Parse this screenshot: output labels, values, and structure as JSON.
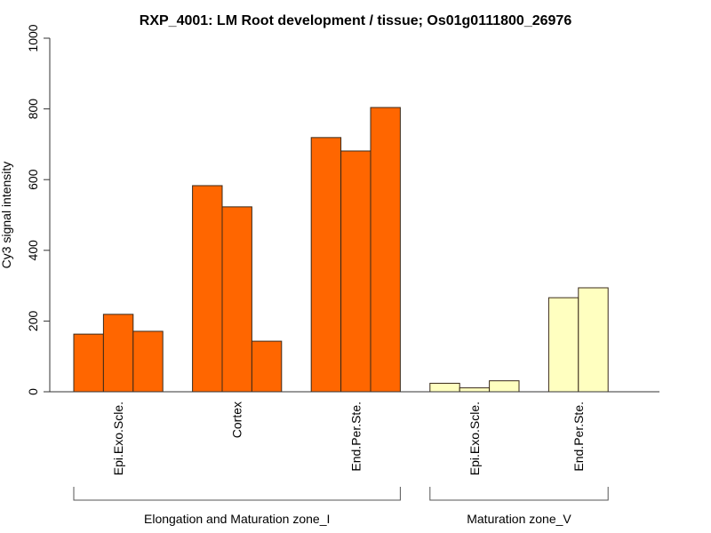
{
  "chart_data": {
    "type": "bar",
    "title": "RXP_4001: LM Root development / tissue; Os01g0111800_26976",
    "xlabel": "",
    "ylabel": "Cy3 signal intensity",
    "ylim": [
      0,
      1000
    ],
    "yticks": [
      "0",
      "200",
      "400",
      "600",
      "800",
      "1000"
    ],
    "grid": false,
    "legend": "none",
    "colors": {
      "zone_I": "#FF6600",
      "zone_V": "#FFFFC0",
      "edge": "#3a2a1a",
      "axis": "#333333"
    },
    "categories": [
      {
        "label": "Epi.Exo.Scle.",
        "group": "zone_I",
        "values": [
          163,
          219,
          171
        ]
      },
      {
        "label": "Cortex",
        "group": "zone_I",
        "values": [
          583,
          523,
          143
        ]
      },
      {
        "label": "End.Per.Ste.",
        "group": "zone_I",
        "values": [
          719,
          681,
          804
        ]
      },
      {
        "label": "Epi.Exo.Scle.",
        "group": "zone_V",
        "values": [
          24,
          11,
          31
        ]
      },
      {
        "label": "End.Per.Ste.",
        "group": "zone_V",
        "values": [
          266,
          294
        ]
      }
    ],
    "groups": [
      {
        "key": "zone_I",
        "label": "Elongation and Maturation zone_I"
      },
      {
        "key": "zone_V",
        "label": "Maturation zone_V"
      }
    ]
  }
}
